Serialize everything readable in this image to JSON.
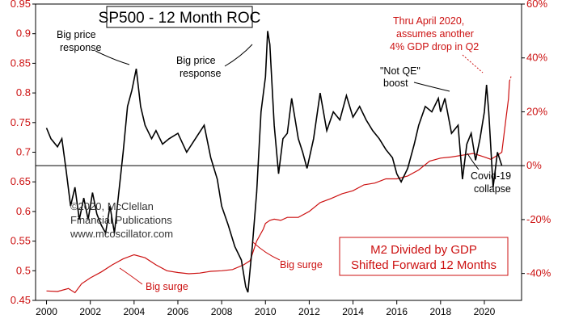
{
  "chart_data": {
    "type": "line",
    "title": "SP500 - 12 Month ROC",
    "x_range": [
      1999.5,
      2021.7
    ],
    "x_ticks": [
      "2000",
      "2002",
      "2004",
      "2006",
      "2008",
      "2010",
      "2012",
      "2014",
      "2016",
      "2018",
      "2020"
    ],
    "left_axis": {
      "ylim": [
        0.45,
        0.95
      ],
      "ticks": [
        "0.45",
        "0.5",
        "0.55",
        "0.6",
        "0.65",
        "0.7",
        "0.75",
        "0.8",
        "0.85",
        "0.9",
        "0.95"
      ],
      "color": "#cc1111"
    },
    "right_axis": {
      "ylim": [
        -50,
        60
      ],
      "ticks": [
        "-40%",
        "-20%",
        "0%",
        "20%",
        "40%",
        "60%"
      ],
      "color": "#cc1111"
    },
    "zero_line_percent": 0,
    "series": [
      {
        "name": "SP500 12 Month ROC",
        "axis": "right",
        "color": "#000000",
        "x": [
          2000.0,
          2000.2,
          2000.5,
          2000.7,
          2000.9,
          2001.1,
          2001.3,
          2001.5,
          2001.7,
          2001.9,
          2002.1,
          2002.3,
          2002.5,
          2002.7,
          2002.9,
          2003.1,
          2003.3,
          2003.5,
          2003.7,
          2003.9,
          2004.1,
          2004.3,
          2004.5,
          2004.8,
          2005.0,
          2005.3,
          2005.6,
          2006.0,
          2006.4,
          2006.8,
          2007.2,
          2007.5,
          2007.8,
          2008.0,
          2008.3,
          2008.6,
          2008.9,
          2009.1,
          2009.2,
          2009.4,
          2009.6,
          2009.8,
          2010.0,
          2010.1,
          2010.2,
          2010.4,
          2010.6,
          2010.8,
          2011.0,
          2011.2,
          2011.5,
          2011.7,
          2011.9,
          2012.2,
          2012.5,
          2012.8,
          2013.1,
          2013.4,
          2013.7,
          2014.0,
          2014.3,
          2014.6,
          2014.9,
          2015.2,
          2015.5,
          2015.8,
          2016.0,
          2016.2,
          2016.5,
          2016.8,
          2017.0,
          2017.3,
          2017.6,
          2017.9,
          2018.0,
          2018.2,
          2018.5,
          2018.8,
          2018.9,
          2019.0,
          2019.2,
          2019.4,
          2019.6,
          2019.8,
          2020.0,
          2020.1,
          2020.2,
          2020.4,
          2020.6,
          2020.8
        ],
        "y": [
          14,
          10,
          7,
          10,
          -2,
          -15,
          -8,
          -20,
          -12,
          -20,
          -10,
          -18,
          -22,
          -25,
          -15,
          -25,
          -10,
          5,
          22,
          28,
          36,
          22,
          15,
          10,
          13,
          8,
          10,
          12,
          5,
          10,
          15,
          3,
          -5,
          -15,
          -22,
          -30,
          -35,
          -45,
          -47,
          -30,
          -10,
          20,
          33,
          50,
          45,
          15,
          -3,
          10,
          12,
          25,
          10,
          5,
          -1,
          10,
          27,
          13,
          20,
          17,
          26,
          18,
          22,
          17,
          13,
          10,
          6,
          3,
          -3,
          -6,
          -1,
          8,
          15,
          22,
          20,
          25,
          20,
          25,
          12,
          15,
          5,
          -5,
          8,
          12,
          2,
          10,
          20,
          30,
          20,
          -8,
          5,
          0
        ]
      },
      {
        "name": "M2 Divided by GDP Shifted Forward 12 Months",
        "axis": "left",
        "color": "#cc1111",
        "x": [
          2000.0,
          2000.5,
          2001.0,
          2001.3,
          2001.6,
          2002.0,
          2002.5,
          2003.0,
          2003.5,
          2004.0,
          2004.5,
          2005.0,
          2005.5,
          2006.0,
          2006.5,
          2007.0,
          2007.5,
          2008.0,
          2008.5,
          2009.0,
          2009.3,
          2009.6,
          2009.9,
          2010.0,
          2010.2,
          2010.4,
          2010.7,
          2011.0,
          2011.5,
          2012.0,
          2012.5,
          2013.0,
          2013.5,
          2014.0,
          2014.5,
          2015.0,
          2015.5,
          2016.0,
          2016.5,
          2017.0,
          2017.5,
          2018.0,
          2018.5,
          2019.0,
          2019.5,
          2020.0,
          2020.3,
          2020.6,
          2020.8,
          2020.9,
          2021.0,
          2021.1,
          2021.15
        ],
        "y": [
          0.466,
          0.465,
          0.47,
          0.463,
          0.478,
          0.488,
          0.498,
          0.51,
          0.52,
          0.527,
          0.522,
          0.51,
          0.5,
          0.497,
          0.495,
          0.496,
          0.499,
          0.5,
          0.502,
          0.51,
          0.517,
          0.55,
          0.57,
          0.58,
          0.585,
          0.587,
          0.585,
          0.59,
          0.59,
          0.6,
          0.615,
          0.622,
          0.63,
          0.635,
          0.645,
          0.648,
          0.655,
          0.655,
          0.66,
          0.67,
          0.685,
          0.69,
          0.692,
          0.695,
          0.698,
          0.692,
          0.688,
          0.695,
          0.7,
          0.73,
          0.76,
          0.79,
          0.82
        ]
      }
    ],
    "annotations": {
      "big_price_response_1": [
        "Big price",
        "response"
      ],
      "big_price_response_2": [
        "Big price",
        "response"
      ],
      "not_qe": [
        "\"Not QE\"",
        "boost"
      ],
      "covid": [
        "Covid-19",
        "collapse"
      ],
      "thru_april": [
        "Thru April 2020,",
        "assumes another",
        "4% GDP drop in Q2"
      ],
      "big_surge_1": "Big surge",
      "big_surge_2": "Big surge",
      "credit": [
        "©2020, McClellan",
        "Financial Publications",
        "www.mcoscillator.com"
      ],
      "m2_legend": [
        "M2 Divided by GDP",
        "Shifted Forward 12 Months"
      ]
    }
  },
  "colors": {
    "red": "#cc1111",
    "black": "#000000",
    "background": "#ffffff"
  }
}
